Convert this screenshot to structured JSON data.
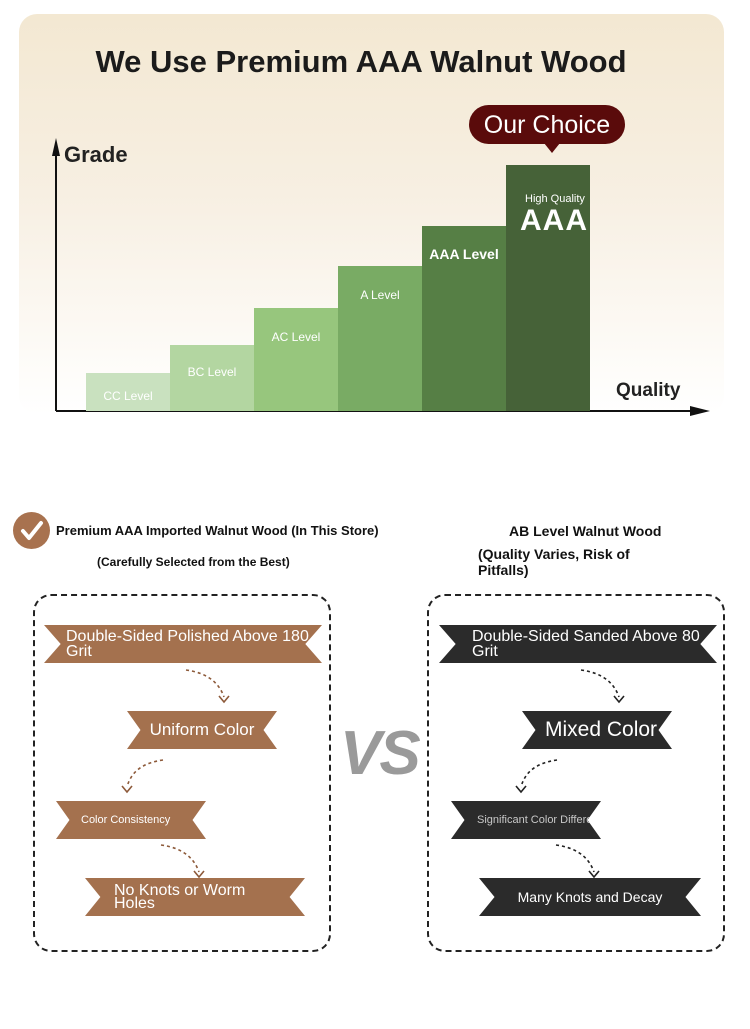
{
  "header": {
    "title": "We Use Premium AAA Walnut Wood"
  },
  "chart_data": {
    "type": "bar",
    "title": "We Use Premium AAA Walnut Wood",
    "ylabel": "Grade",
    "xlabel": "Quality",
    "categories": [
      "CC Level",
      "BC Level",
      "AC Level",
      "A Level",
      "AAA Level",
      "High Quality AAA"
    ],
    "values": [
      1,
      2,
      3,
      4,
      5,
      6
    ],
    "colors": [
      "#c9e1bf",
      "#b3d6a1",
      "#97c67d",
      "#79ab64",
      "#567f45",
      "#466238"
    ],
    "highlight": {
      "label": "Our Choice",
      "color": "#5a0b0b"
    },
    "top_bar": {
      "small": "High Quality",
      "big": "AAA"
    }
  },
  "left": {
    "heading": "Premium AAA Imported Walnut Wood (In This Store)",
    "subheading": "(Carefully Selected from the Best)",
    "items": [
      "Double-Sided Polished Above 180 Grit",
      "Uniform Color",
      "Color Consistency",
      "No Knots or Worm Holes"
    ]
  },
  "vs": "VS",
  "right": {
    "heading": "AB Level Walnut Wood",
    "subheading": "(Quality Varies, Risk of Pitfalls)",
    "items": [
      "Double-Sided Sanded Above 80 Grit",
      "Mixed Color",
      "Significant Color Difference",
      "Many Knots and Decay"
    ]
  }
}
